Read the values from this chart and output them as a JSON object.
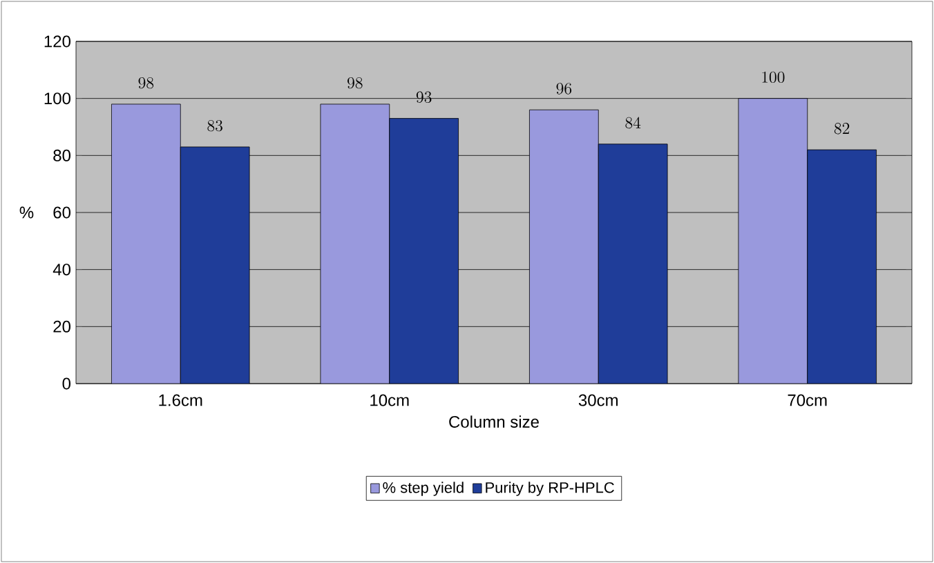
{
  "chart_data": {
    "type": "bar",
    "xlabel": "Column size",
    "ylabel": "%",
    "categories": [
      "1.6cm",
      "10cm",
      "30cm",
      "70cm"
    ],
    "series": [
      {
        "name": "% step yield",
        "color": "#9999dd",
        "values": [
          98,
          98,
          96,
          100
        ]
      },
      {
        "name": "Purity by RP-HPLC",
        "color": "#1f3d99",
        "values": [
          83,
          93,
          84,
          82
        ]
      }
    ],
    "ylim": [
      0,
      120
    ],
    "yticks": [
      0,
      20,
      40,
      60,
      80,
      100,
      120
    ],
    "grid": "y",
    "legend": "bottom",
    "data_labels": true
  }
}
